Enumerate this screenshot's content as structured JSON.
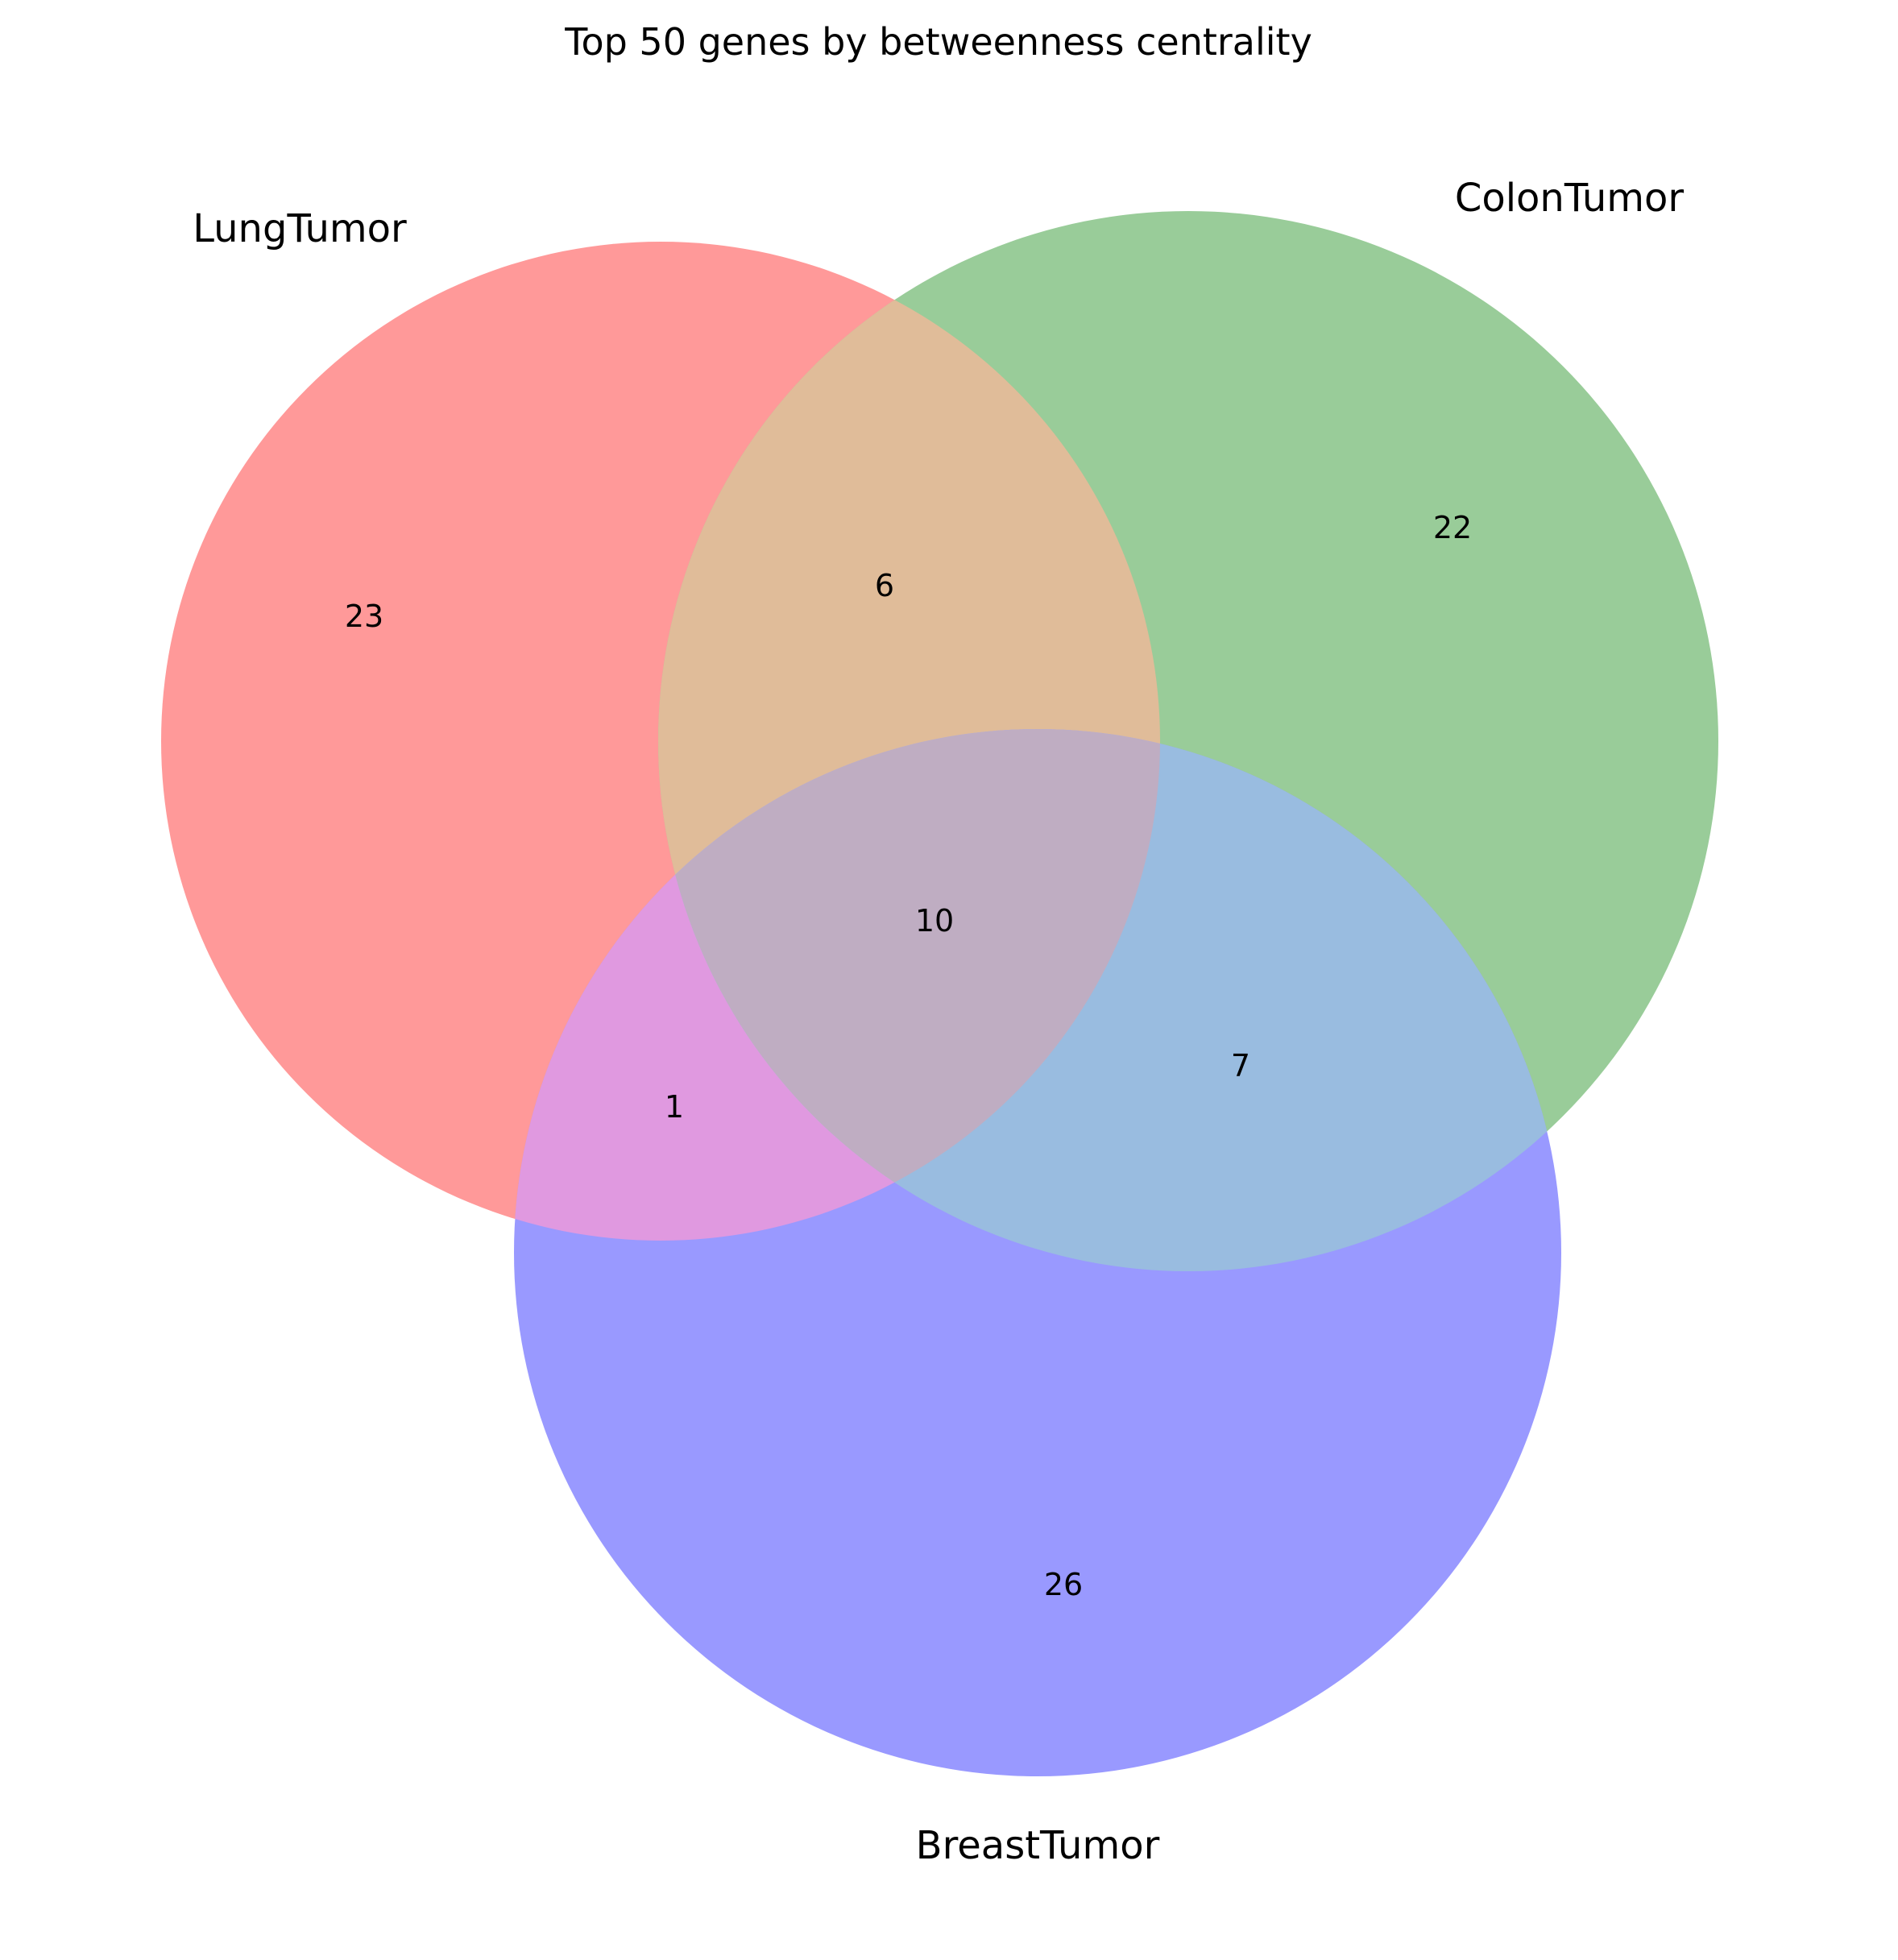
{
  "title": "Top 50 genes by betweenness centrality",
  "sets": [
    {
      "name": "LungTumor",
      "color": "#ff9999"
    },
    {
      "name": "ColonTumor",
      "color": "#99cc99"
    },
    {
      "name": "BreastTumor",
      "color": "#9999ff"
    }
  ],
  "regions": {
    "lung_only": "23",
    "colon_only": "22",
    "breast_only": "26",
    "lung_colon": "6",
    "lung_breast": "1",
    "colon_breast": "7",
    "all_three": "10"
  },
  "region_colors": {
    "lung_colon": "#e0bc99",
    "lung_breast": "#e099e0",
    "colon_breast": "#99bce0",
    "all_three": "#bfadc2"
  }
}
